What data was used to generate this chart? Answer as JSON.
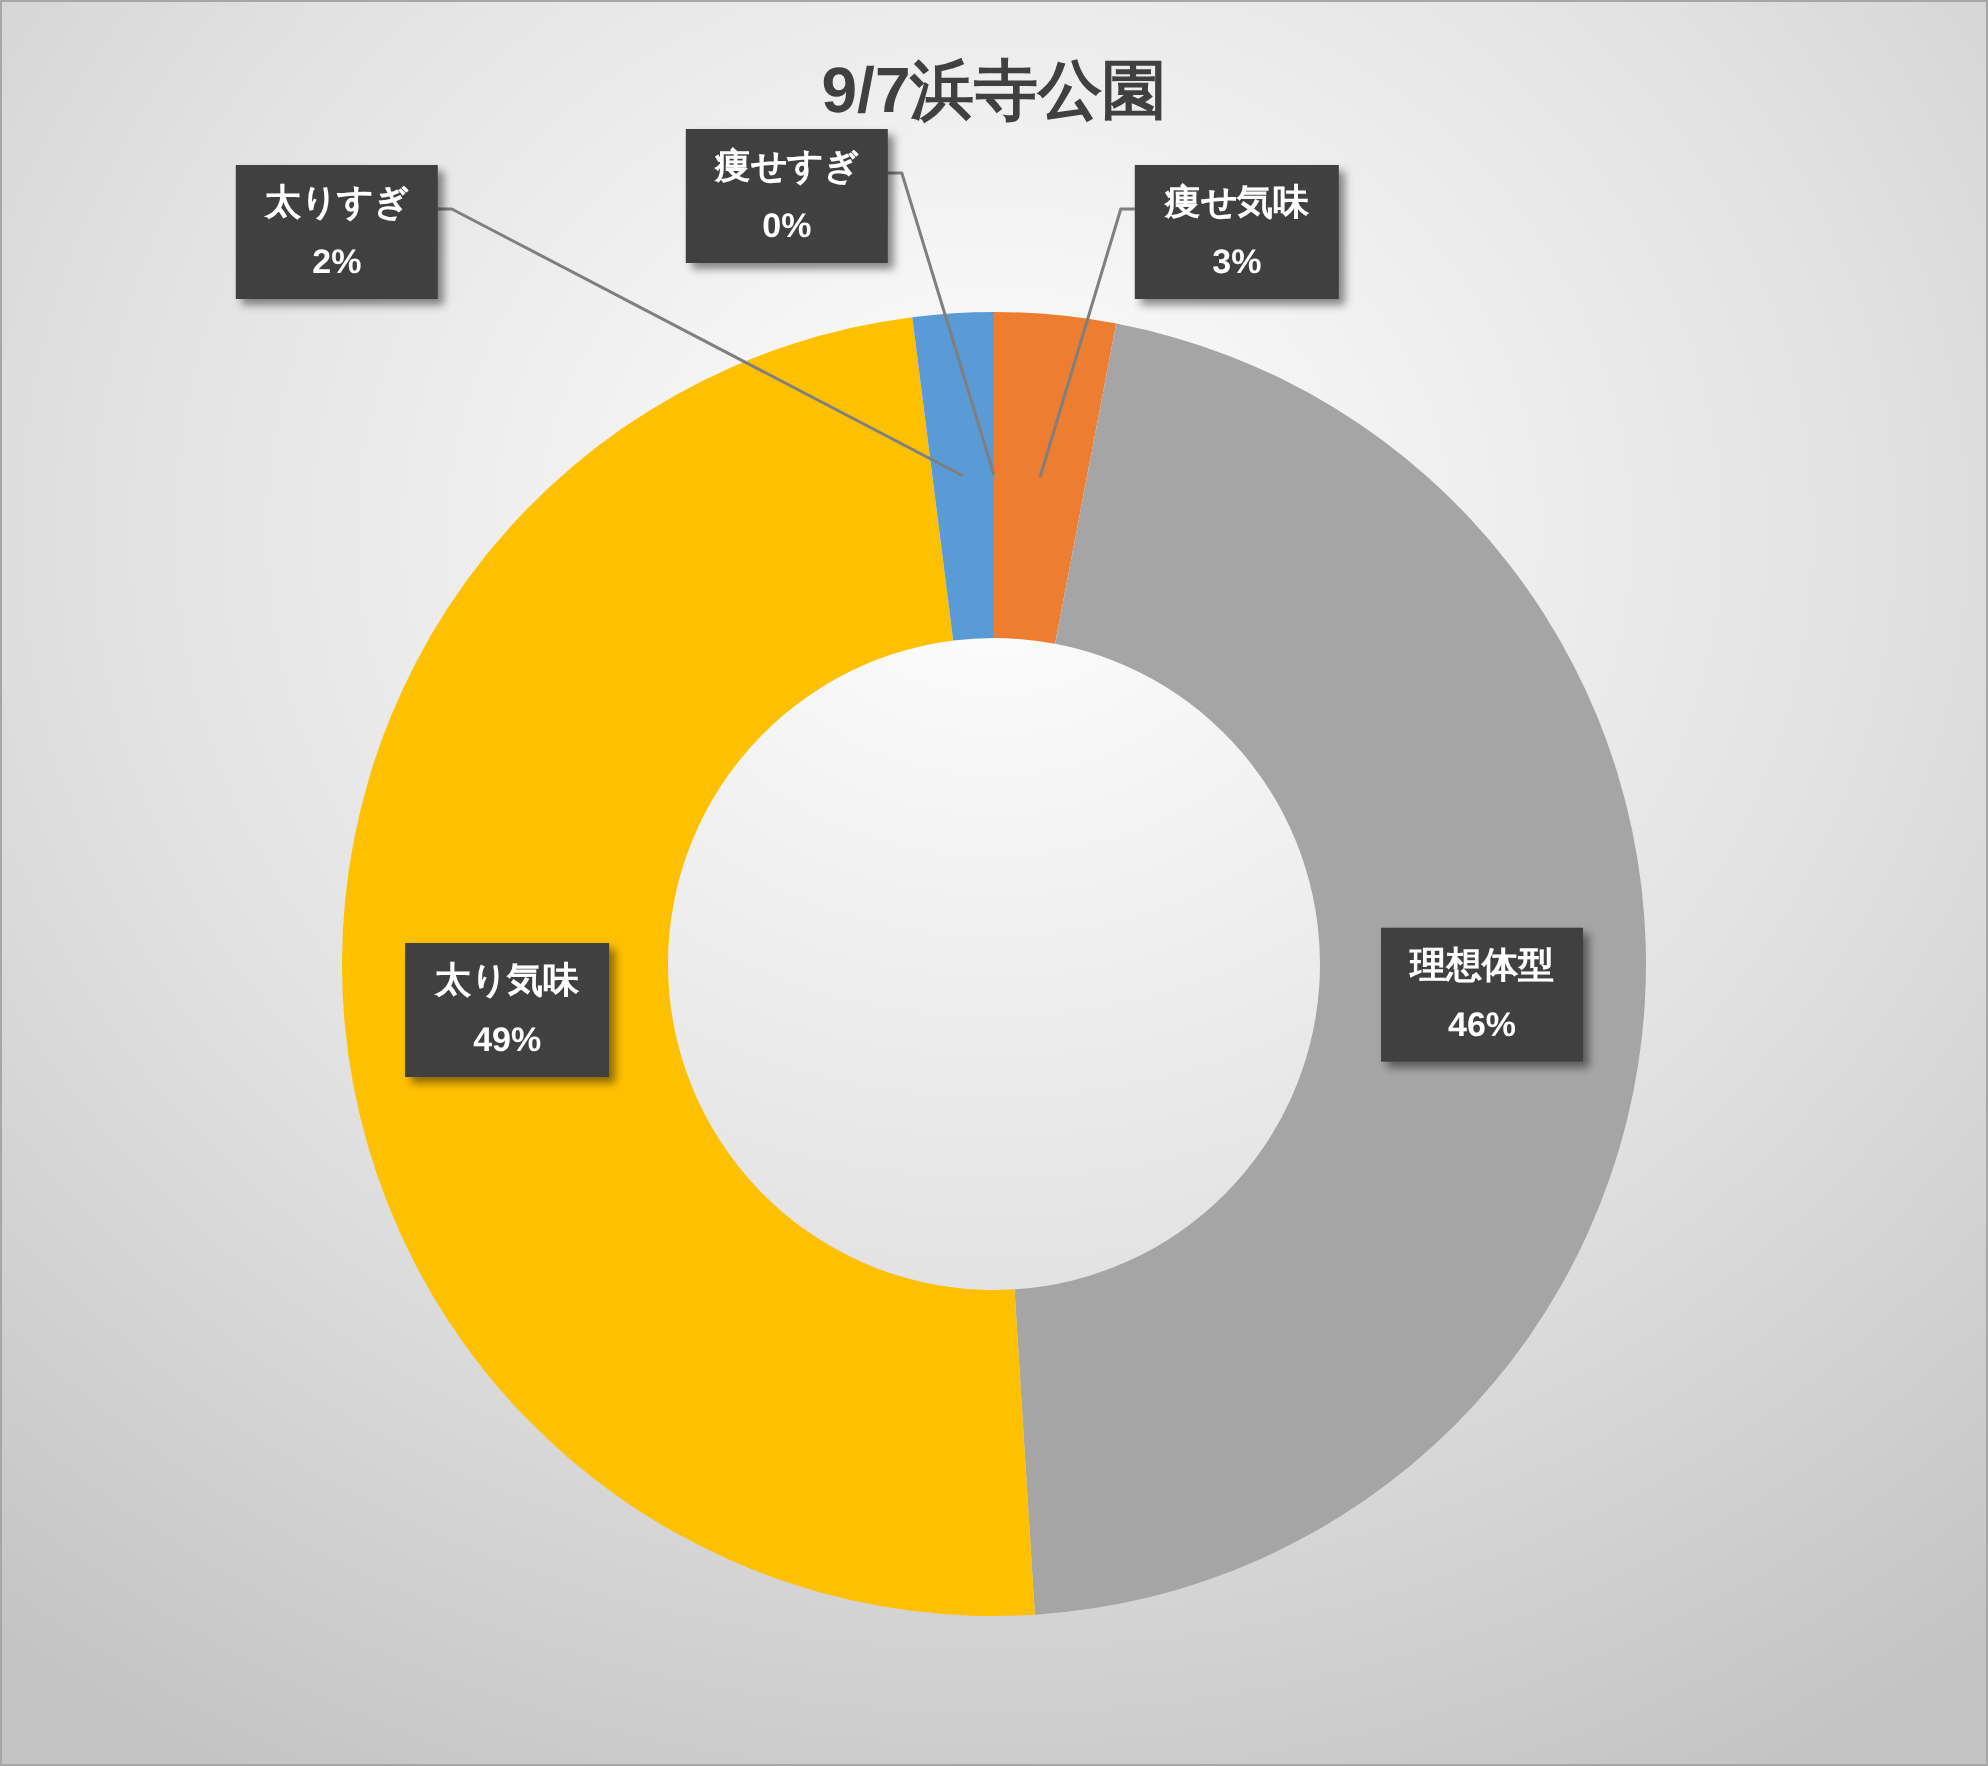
{
  "chart_data": {
    "type": "donut",
    "title": "9/7浜寺公園",
    "categories": [
      "痩せすぎ",
      "痩せ気味",
      "理想体型",
      "太り気味",
      "太りすぎ"
    ],
    "values": [
      0,
      3,
      46,
      49,
      2
    ],
    "colors": [
      null,
      "#ed7d31",
      "#a5a5a5",
      "#ffc000",
      "#5b9bd5"
    ],
    "value_labels": [
      "0%",
      "3%",
      "46%",
      "49%",
      "2%"
    ]
  }
}
